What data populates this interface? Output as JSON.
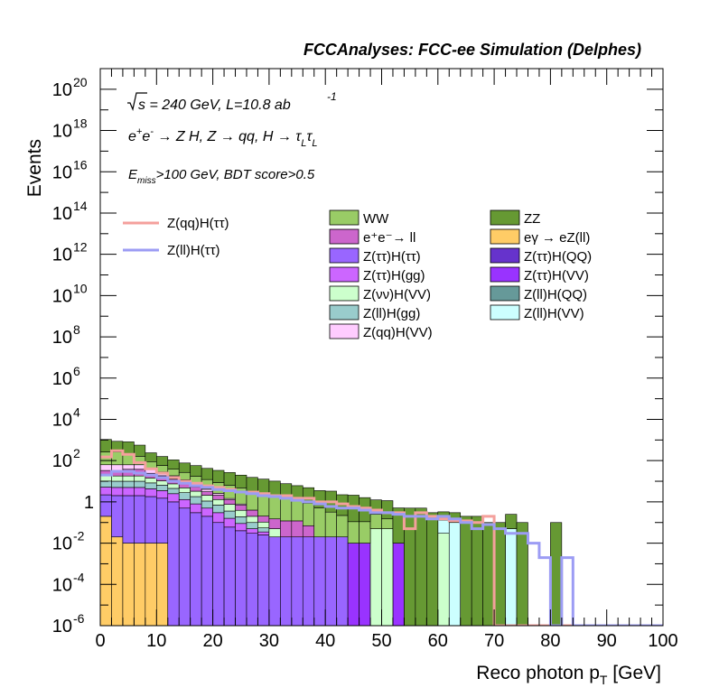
{
  "header": "FCCAnalyses: FCC-ee Simulation (Delphes)",
  "annotations": {
    "line1": "√s = 240 GeV, L=10.8 ab",
    "line1_exp": "-1",
    "line2": "e⁺e⁻ → Z H, Z → qq, H → τ_L τ_L",
    "line3": "E_miss>100 GeV, BDT score>0.5"
  },
  "legend_signal": [
    {
      "name": "Z(qq)H(ττ)",
      "color": "#f4a09c"
    },
    {
      "name": "Z(ll)H(ττ)",
      "color": "#9c9cf4"
    }
  ],
  "legend_bkg": [
    {
      "name": "WW",
      "color": "#99cc66"
    },
    {
      "name": "ZZ",
      "color": "#669933"
    },
    {
      "name": "e⁺e⁻→ ll",
      "color": "#cc66cc"
    },
    {
      "name": "eγ → eZ(ll)",
      "color": "#ffcc66"
    },
    {
      "name": "Z(ττ)H(ττ)",
      "color": "#9966ff"
    },
    {
      "name": "Z(ττ)H(QQ)",
      "color": "#6633cc"
    },
    {
      "name": "Z(ττ)H(gg)",
      "color": "#cc66ff"
    },
    {
      "name": "Z(ττ)H(VV)",
      "color": "#9933ff"
    },
    {
      "name": "Z(νν)H(VV)",
      "color": "#ccffcc"
    },
    {
      "name": "Z(ll)H(QQ)",
      "color": "#669999"
    },
    {
      "name": "Z(ll)H(gg)",
      "color": "#99cccc"
    },
    {
      "name": "Z(ll)H(VV)",
      "color": "#ccffff"
    },
    {
      "name": "Z(qq)H(VV)",
      "color": "#ffccff"
    }
  ],
  "chart_data": {
    "type": "area",
    "title": "FCCAnalyses: FCC-ee Simulation (Delphes)",
    "xlabel": "Reco photon p_T [GeV]",
    "ylabel": "Events",
    "xlim": [
      0,
      100
    ],
    "ylim": [
      1e-06,
      1e+21
    ],
    "y_scale": "log",
    "bin_width": 2,
    "x_ticks": [
      "0",
      "10",
      "20",
      "30",
      "40",
      "50",
      "60",
      "70",
      "80",
      "90",
      "100"
    ],
    "y_ticks": [
      {
        "base": "10",
        "exp": "-6"
      },
      {
        "base": "10",
        "exp": "-4"
      },
      {
        "base": "10",
        "exp": "-2"
      },
      {
        "base": "1",
        "exp": ""
      },
      {
        "base": "10",
        "exp": "2"
      },
      {
        "base": "10",
        "exp": "4"
      },
      {
        "base": "10",
        "exp": "6"
      },
      {
        "base": "10",
        "exp": "8"
      },
      {
        "base": "10",
        "exp": "10"
      },
      {
        "base": "10",
        "exp": "12"
      },
      {
        "base": "10",
        "exp": "14"
      },
      {
        "base": "10",
        "exp": "16"
      },
      {
        "base": "10",
        "exp": "18"
      },
      {
        "base": "10",
        "exp": "20"
      }
    ],
    "bkg_series": [
      {
        "name": "eγ → eZ(ll)",
        "color": "#ffcc66",
        "values": [
          0.2,
          0.02,
          0.01,
          0.01,
          0.01,
          0.01,
          null,
          null,
          null,
          null,
          null,
          null,
          null,
          null,
          null,
          null,
          null,
          null,
          null,
          null,
          null,
          null,
          null,
          null,
          null,
          null,
          null,
          null,
          null,
          null,
          null,
          null,
          null,
          null,
          null,
          null,
          null,
          null,
          null,
          null,
          null,
          null,
          null,
          null,
          null,
          null,
          null,
          null,
          null,
          null
        ]
      },
      {
        "name": "Z(ττ)H(ττ)",
        "color": "#9966ff",
        "values": [
          2.0,
          2.0,
          2.0,
          2.0,
          1.8,
          1.5,
          1.0,
          0.5,
          0.3,
          0.2,
          0.1,
          0.06,
          0.04,
          0.03,
          0.025,
          0.02,
          0.02,
          0.02,
          0.02,
          0.02,
          0.02,
          0.02,
          null,
          null,
          null,
          null,
          null,
          null,
          null,
          null,
          null,
          null,
          null,
          null,
          null,
          null,
          null,
          null,
          null,
          null,
          null,
          null,
          null,
          null,
          null,
          null,
          null,
          null,
          null,
          null
        ]
      },
      {
        "name": "Z(ττ)H(VV)",
        "color": "#9933ff",
        "values": [
          null,
          null,
          null,
          null,
          null,
          null,
          null,
          null,
          null,
          null,
          null,
          null,
          null,
          null,
          null,
          null,
          null,
          null,
          null,
          null,
          null,
          null,
          0.01,
          0.01,
          null,
          null,
          0.01,
          null,
          null,
          null,
          null,
          null,
          null,
          null,
          null,
          null,
          null,
          null,
          null,
          null,
          null,
          null,
          null,
          null,
          null,
          null,
          null,
          null,
          null,
          null
        ]
      },
      {
        "name": "Z(ττ)H(gg)",
        "color": "#cc66ff",
        "values": [
          3,
          3,
          3,
          3,
          2.5,
          2,
          1.5,
          0.8,
          0.5,
          0.3,
          0.2,
          0.1,
          0.05,
          0.02,
          0.01,
          null,
          null,
          null,
          null,
          null,
          null,
          null,
          null,
          null,
          null,
          null,
          null,
          null,
          null,
          null,
          null,
          null,
          null,
          null,
          null,
          null,
          null,
          null,
          null,
          null,
          null,
          null,
          null,
          null,
          null,
          null,
          null,
          null,
          null,
          null
        ]
      },
      {
        "name": "Z(ll)H(gg)",
        "color": "#99cccc",
        "values": [
          5,
          5,
          5,
          5,
          4,
          3,
          2,
          1.5,
          1,
          0.6,
          0.4,
          0.2,
          0.1,
          0.05,
          0.02,
          null,
          null,
          null,
          null,
          null,
          null,
          null,
          null,
          null,
          null,
          null,
          null,
          null,
          null,
          null,
          null,
          null,
          null,
          null,
          null,
          null,
          null,
          null,
          null,
          null,
          null,
          null,
          null,
          null,
          null,
          null,
          null,
          null,
          null,
          null
        ]
      },
      {
        "name": "Z(νν)H(VV)",
        "color": "#ccffcc",
        "values": [
          8,
          8,
          8,
          8,
          6,
          4,
          3,
          2,
          1.5,
          1,
          0.6,
          0.4,
          0.2,
          0.1,
          0.05,
          0.03,
          null,
          null,
          null,
          null,
          null,
          null,
          null,
          null,
          0.05,
          0.05,
          null,
          null,
          null,
          null,
          0.03,
          null,
          null,
          null,
          null,
          null,
          null,
          null,
          null,
          null,
          null,
          null,
          null,
          null,
          null,
          null,
          null,
          null,
          null,
          null
        ]
      },
      {
        "name": "Z(ll)H(VV)",
        "color": "#ccffff",
        "values": [
          null,
          null,
          null,
          null,
          null,
          null,
          null,
          null,
          null,
          null,
          null,
          null,
          null,
          null,
          null,
          null,
          null,
          null,
          null,
          null,
          null,
          null,
          null,
          null,
          null,
          null,
          null,
          null,
          null,
          null,
          0.1,
          0.1,
          null,
          null,
          null,
          null,
          0.05,
          null,
          null,
          null,
          null,
          null,
          null,
          null,
          null,
          null,
          null,
          null,
          null,
          null
        ]
      },
      {
        "name": "e⁺e⁻→ ll",
        "color": "#cc66cc",
        "values": [
          15,
          15,
          20,
          20,
          10,
          8,
          5,
          3,
          2,
          1,
          0.8,
          0.5,
          0.3,
          0.2,
          0.1,
          0.1,
          0.1,
          0.1,
          0.05,
          null,
          null,
          null,
          null,
          null,
          null,
          null,
          null,
          null,
          null,
          null,
          null,
          null,
          null,
          null,
          null,
          null,
          null,
          null,
          null,
          null,
          null,
          null,
          null,
          null,
          null,
          null,
          null,
          null,
          null,
          null
        ]
      },
      {
        "name": "Z(qq)H(VV)",
        "color": "#ffccff",
        "values": [
          30,
          30,
          25,
          25,
          15,
          10,
          6,
          4,
          2,
          1,
          0.5,
          0.2,
          0.1,
          null,
          null,
          null,
          null,
          null,
          null,
          null,
          null,
          null,
          null,
          null,
          null,
          null,
          null,
          null,
          null,
          null,
          null,
          null,
          null,
          null,
          null,
          null,
          null,
          null,
          null,
          null,
          null,
          null,
          null,
          null,
          null,
          null,
          null,
          null,
          null,
          null
        ]
      },
      {
        "name": "WW",
        "color": "#99cc66",
        "values": [
          200,
          200,
          150,
          100,
          50,
          30,
          20,
          15,
          10,
          8,
          6,
          5,
          4,
          3,
          2.5,
          2,
          1.5,
          1,
          0.8,
          0.5,
          0.3,
          0.2,
          0.1,
          0.1,
          0.2,
          0.1,
          null,
          null,
          null,
          null,
          null,
          null,
          null,
          null,
          null,
          null,
          null,
          null,
          null,
          null,
          null,
          null,
          null,
          null,
          null,
          null,
          null,
          null,
          null,
          null
        ]
      },
      {
        "name": "ZZ",
        "color": "#669933",
        "values": [
          800,
          600,
          600,
          400,
          150,
          100,
          70,
          50,
          40,
          30,
          25,
          20,
          15,
          12,
          10,
          8,
          6,
          5,
          4,
          3,
          3,
          2,
          2,
          1.5,
          1.0,
          1.0,
          0.5,
          0.5,
          0.5,
          0.3,
          0.2,
          0.2,
          0.2,
          0.2,
          0.1,
          0.1,
          0.2,
          0.1,
          null,
          null,
          0.1,
          null,
          null,
          null,
          null,
          null,
          null,
          null,
          null,
          null
        ]
      }
    ],
    "signal_series": [
      {
        "name": "Z(qq)H(ττ)",
        "color": "#f4a09c",
        "values": [
          150,
          300,
          200,
          80,
          40,
          25,
          15,
          10,
          8,
          6,
          5,
          4,
          3,
          3,
          2.5,
          2,
          2,
          1.5,
          1.5,
          1,
          1,
          0.8,
          0.6,
          0.5,
          0.4,
          0.3,
          0.3,
          0.05,
          0.3,
          0.2,
          0.15,
          0.12,
          0.12,
          0.1,
          0.2,
          null,
          null,
          null,
          null,
          null,
          null,
          null,
          null,
          null,
          null,
          null,
          null,
          null,
          null,
          null
        ]
      },
      {
        "name": "Z(ll)H(ττ)",
        "color": "#9c9cf4",
        "values": [
          20,
          30,
          30,
          25,
          20,
          15,
          10,
          8,
          6,
          5,
          4,
          3.5,
          3,
          2.5,
          2,
          1.8,
          1.5,
          1.2,
          1,
          0.8,
          0.6,
          0.5,
          0.5,
          0.4,
          0.3,
          0.3,
          0.25,
          0.2,
          0.2,
          0.15,
          0.2,
          0.15,
          0.1,
          0.05,
          0.08,
          0.05,
          0.03,
          0.03,
          0.01,
          0.002,
          null,
          0.002,
          null,
          null,
          null,
          null,
          null,
          null,
          null,
          null
        ]
      }
    ]
  }
}
